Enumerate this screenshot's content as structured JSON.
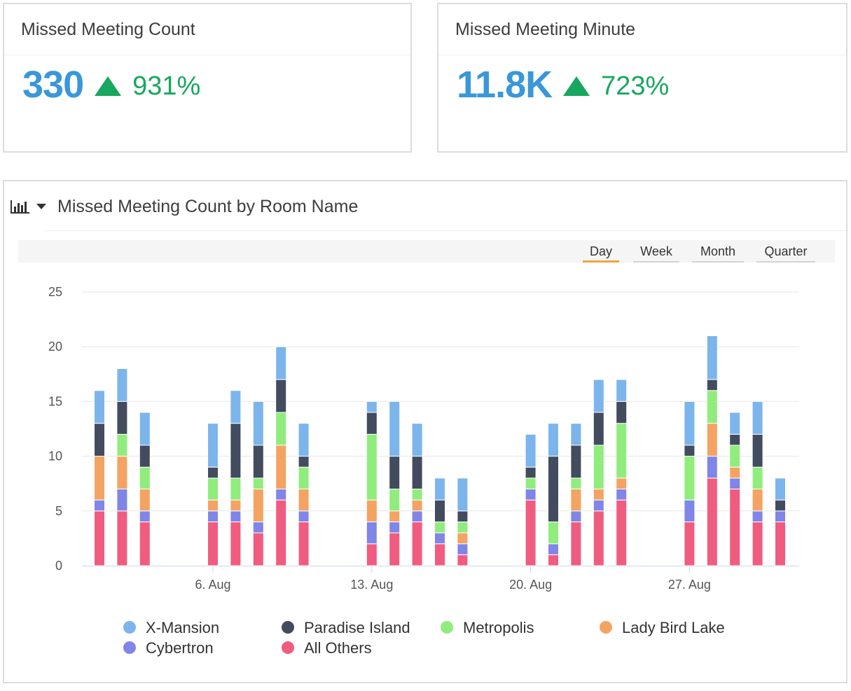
{
  "kpis": [
    {
      "title": "Missed Meeting Count",
      "value": "330",
      "change": "931%",
      "trend": "up",
      "trend_color": "#18a760"
    },
    {
      "title": "Missed Meeting Minute",
      "value": "11.8K",
      "change": "723%",
      "trend": "up",
      "trend_color": "#18a760"
    }
  ],
  "panel": {
    "title": "Missed Meeting Count by Room Name",
    "chart_type_icon": "bar-chart-icon",
    "menu_icon": "caret-down-icon"
  },
  "periods": {
    "options": [
      "Day",
      "Week",
      "Month",
      "Quarter"
    ],
    "selected": "Day",
    "active_color": "#f5a339"
  },
  "chart_data": {
    "type": "bar",
    "stacked": true,
    "title": "Missed Meeting Count by Room Name",
    "xlabel": "",
    "ylabel": "",
    "ylim": [
      0,
      25
    ],
    "yticks": [
      0,
      5,
      10,
      15,
      20,
      25
    ],
    "grid": true,
    "legend_position": "bottom",
    "x_start_day": 1,
    "x_end_day": 31,
    "x_month": "Aug",
    "xticks": [
      {
        "day": 6,
        "label": "6. Aug"
      },
      {
        "day": 13,
        "label": "13. Aug"
      },
      {
        "day": 20,
        "label": "20. Aug"
      },
      {
        "day": 27,
        "label": "27. Aug"
      }
    ],
    "categories": [
      "1 Aug",
      "2 Aug",
      "3 Aug",
      "6 Aug",
      "7 Aug",
      "8 Aug",
      "9 Aug",
      "10 Aug",
      "13 Aug",
      "14 Aug",
      "15 Aug",
      "16 Aug",
      "17 Aug",
      "20 Aug",
      "21 Aug",
      "22 Aug",
      "23 Aug",
      "24 Aug",
      "27 Aug",
      "28 Aug",
      "29 Aug",
      "30 Aug",
      "31 Aug"
    ],
    "days": [
      1,
      2,
      3,
      6,
      7,
      8,
      9,
      10,
      13,
      14,
      15,
      16,
      17,
      20,
      21,
      22,
      23,
      24,
      27,
      28,
      29,
      30,
      31
    ],
    "series": [
      {
        "name": "All Others",
        "color": "#f05c7f",
        "values": [
          5,
          5,
          4,
          4,
          4,
          3,
          6,
          4,
          2,
          3,
          4,
          2,
          1,
          6,
          1,
          4,
          5,
          6,
          4,
          8,
          7,
          4,
          4
        ]
      },
      {
        "name": "Cybertron",
        "color": "#8085e8",
        "values": [
          1,
          2,
          1,
          1,
          1,
          1,
          1,
          1,
          2,
          1,
          1,
          1,
          1,
          1,
          1,
          1,
          1,
          1,
          2,
          2,
          1,
          1,
          1
        ]
      },
      {
        "name": "Lady Bird Lake",
        "color": "#f4a362",
        "values": [
          4,
          3,
          2,
          1,
          1,
          3,
          4,
          2,
          2,
          1,
          1,
          0,
          1,
          0,
          0,
          2,
          1,
          1,
          0,
          3,
          1,
          2,
          0
        ]
      },
      {
        "name": "Metropolis",
        "color": "#90ed7d",
        "values": [
          0,
          2,
          2,
          2,
          2,
          1,
          3,
          2,
          6,
          2,
          1,
          1,
          1,
          1,
          2,
          1,
          4,
          5,
          4,
          3,
          2,
          2,
          0
        ]
      },
      {
        "name": "Paradise Island",
        "color": "#434b5f",
        "values": [
          3,
          3,
          2,
          1,
          5,
          3,
          3,
          1,
          2,
          3,
          3,
          2,
          1,
          1,
          6,
          3,
          3,
          2,
          1,
          1,
          1,
          3,
          1
        ]
      },
      {
        "name": "X-Mansion",
        "color": "#7cb5ec",
        "values": [
          3,
          3,
          3,
          4,
          3,
          4,
          3,
          3,
          1,
          5,
          3,
          2,
          3,
          3,
          3,
          2,
          3,
          2,
          4,
          4,
          2,
          3,
          2
        ]
      }
    ],
    "legend_order": [
      "X-Mansion",
      "Paradise Island",
      "Metropolis",
      "Lady Bird Lake",
      "Cybertron",
      "All Others"
    ]
  }
}
